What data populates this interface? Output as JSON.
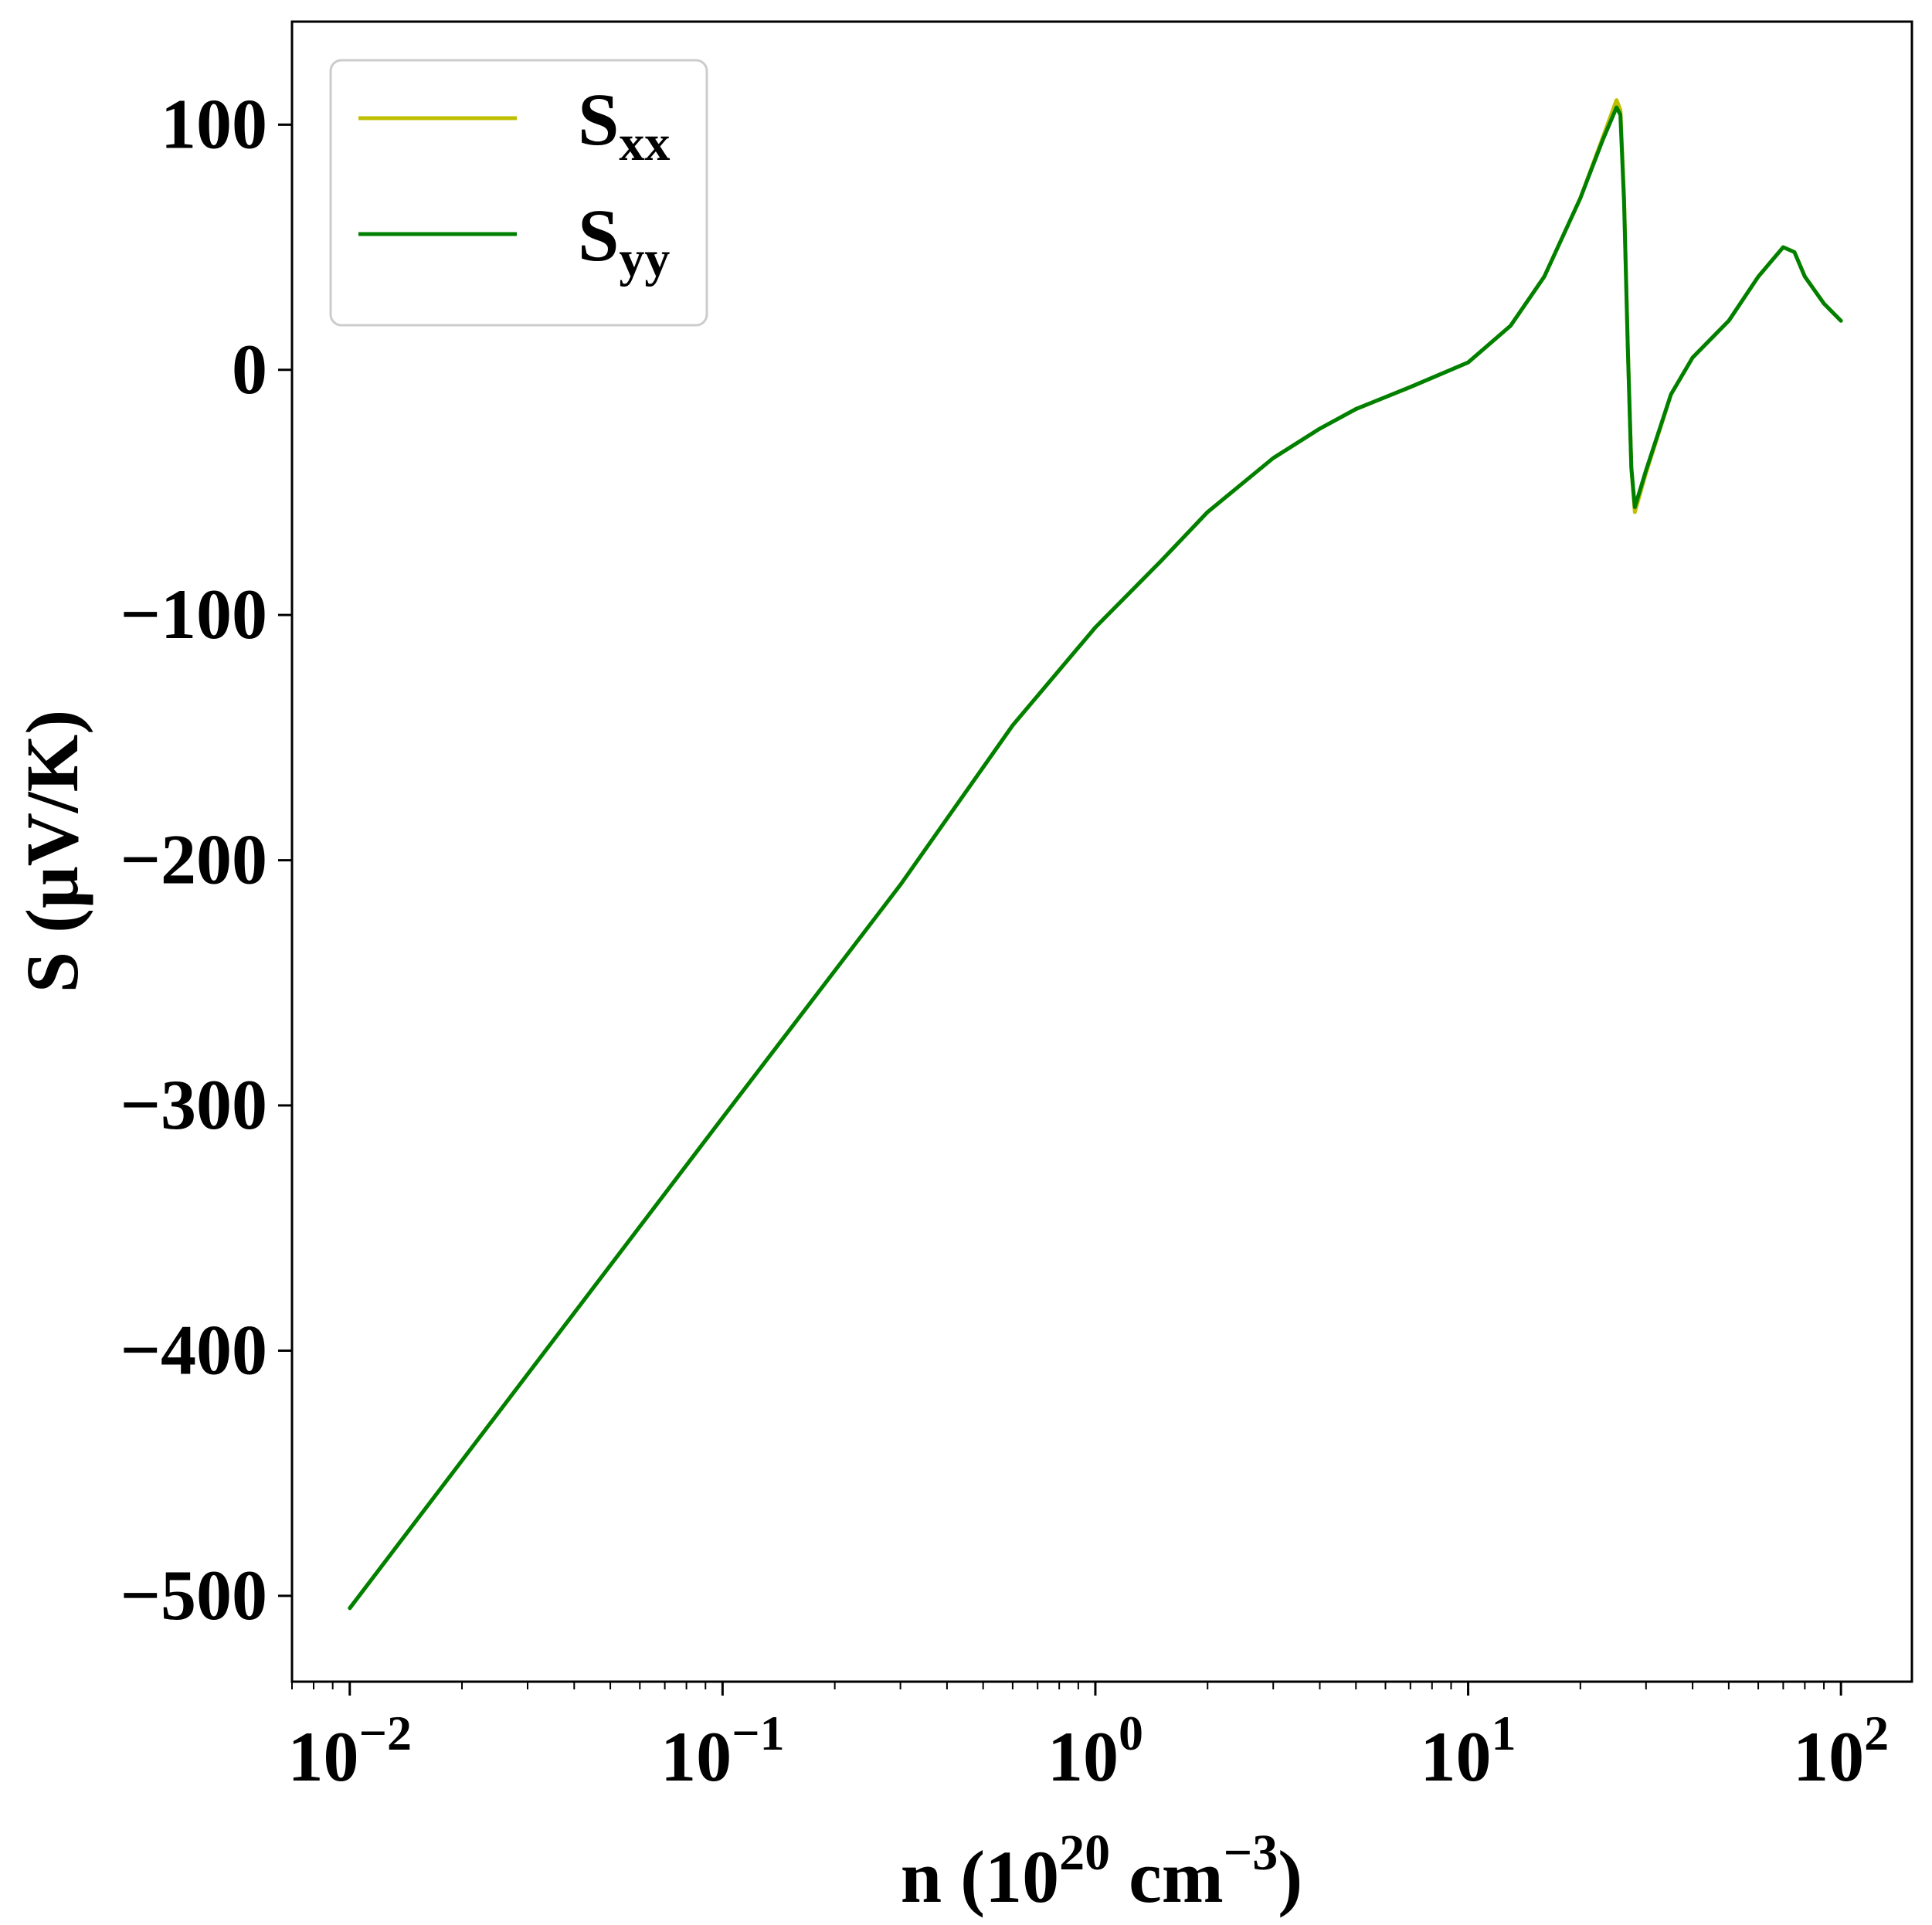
{
  "chart_data": {
    "type": "line",
    "xscale": "log",
    "xlim": [
      0.007,
      155
    ],
    "ylim": [
      -535,
      142
    ],
    "grid": false,
    "legend_position": "upper-left",
    "xlabel": {
      "prefix": "n (10",
      "sup1": "20",
      "middle": " cm",
      "sup2": "−3",
      "suffix": ")"
    },
    "ylabel": "S (μV/K)",
    "yticks": [
      {
        "value": 100,
        "label": "100"
      },
      {
        "value": 0,
        "label": "0"
      },
      {
        "value": -100,
        "label": "−100"
      },
      {
        "value": -200,
        "label": "−200"
      },
      {
        "value": -300,
        "label": "−300"
      },
      {
        "value": -400,
        "label": "−400"
      },
      {
        "value": -500,
        "label": "−500"
      }
    ],
    "xticks": [
      {
        "value": 0.01,
        "base": "10",
        "exp": "−2"
      },
      {
        "value": 0.1,
        "base": "10",
        "exp": "−1"
      },
      {
        "value": 1,
        "base": "10",
        "exp": "0"
      },
      {
        "value": 10,
        "base": "10",
        "exp": "1"
      },
      {
        "value": 100,
        "base": "10",
        "exp": "2"
      }
    ],
    "series": [
      {
        "name_main": "S",
        "name_sub": "xx",
        "color": "#bfbf00",
        "x": [
          0.01,
          0.1,
          0.3,
          0.6,
          1,
          1.5,
          2,
          3,
          4,
          5,
          7,
          10,
          13,
          16,
          20,
          23,
          25,
          25.6,
          26.2,
          26.8,
          27.4,
          28,
          30,
          35,
          40,
          50,
          60,
          70,
          75,
          80,
          90,
          100
        ],
        "y": [
          -505,
          -305,
          -210,
          -145,
          -105,
          -78,
          -58,
          -36,
          -24,
          -16,
          -7,
          3,
          18,
          38,
          70,
          95,
          110,
          106,
          70,
          10,
          -40,
          -58,
          -42,
          -10,
          5,
          20,
          38,
          50,
          48,
          38,
          27,
          20
        ]
      },
      {
        "name_main": "S",
        "name_sub": "yy",
        "color": "#008000",
        "x": [
          0.01,
          0.1,
          0.3,
          0.6,
          1,
          1.5,
          2,
          3,
          4,
          5,
          7,
          10,
          13,
          16,
          20,
          23,
          25,
          25.6,
          26.2,
          26.8,
          27.4,
          28,
          30,
          35,
          40,
          50,
          60,
          70,
          75,
          80,
          90,
          100
        ],
        "y": [
          -505,
          -305,
          -210,
          -145,
          -105,
          -78,
          -58,
          -36,
          -24,
          -16,
          -7,
          3,
          18,
          38,
          70,
          94,
          107,
          104,
          68,
          9,
          -40,
          -56,
          -41,
          -10,
          5,
          20,
          38,
          50,
          48,
          38,
          27,
          20
        ]
      }
    ]
  }
}
